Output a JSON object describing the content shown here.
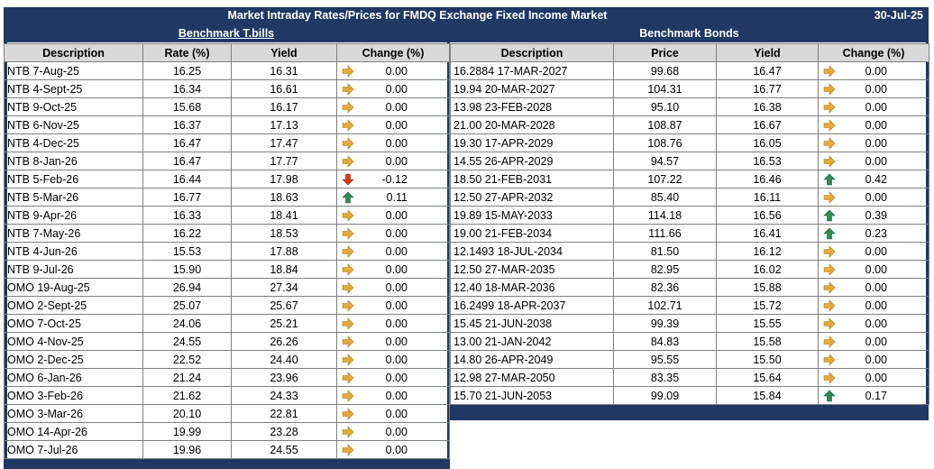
{
  "title": "Market Intraday Rates/Prices for FMDQ Exchange Fixed Income Market",
  "date": "30-Jul-25",
  "colors": {
    "navy": "#1f3864",
    "up": "#2e8b57",
    "down": "#d83b1a",
    "flat": "#e3a93a"
  },
  "tbills": {
    "heading": "Benchmark T.bills",
    "columns": [
      "Description",
      "Rate (%)",
      "Yield",
      "Change (%)"
    ],
    "rows": [
      {
        "desc": "NTB 7-Aug-25",
        "rate": "16.25",
        "yield": "16.31",
        "dir": "flat",
        "change": "0.00"
      },
      {
        "desc": "NTB 4-Sept-25",
        "rate": "16.34",
        "yield": "16.61",
        "dir": "flat",
        "change": "0.00"
      },
      {
        "desc": "NTB 9-Oct-25",
        "rate": "15.68",
        "yield": "16.17",
        "dir": "flat",
        "change": "0.00"
      },
      {
        "desc": "NTB 6-Nov-25",
        "rate": "16.37",
        "yield": "17.13",
        "dir": "flat",
        "change": "0.00"
      },
      {
        "desc": "NTB 4-Dec-25",
        "rate": "16.47",
        "yield": "17.47",
        "dir": "flat",
        "change": "0.00"
      },
      {
        "desc": "NTB 8-Jan-26",
        "rate": "16.47",
        "yield": "17.77",
        "dir": "flat",
        "change": "0.00"
      },
      {
        "desc": "NTB 5-Feb-26",
        "rate": "16.44",
        "yield": "17.98",
        "dir": "down",
        "change": "-0.12"
      },
      {
        "desc": "NTB 5-Mar-26",
        "rate": "16.77",
        "yield": "18.63",
        "dir": "up",
        "change": "0.11"
      },
      {
        "desc": "NTB 9-Apr-26",
        "rate": "16.33",
        "yield": "18.41",
        "dir": "flat",
        "change": "0.00"
      },
      {
        "desc": "NTB 7-May-26",
        "rate": "16.22",
        "yield": "18.53",
        "dir": "flat",
        "change": "0.00"
      },
      {
        "desc": "NTB 4-Jun-26",
        "rate": "15.53",
        "yield": "17.88",
        "dir": "flat",
        "change": "0.00"
      },
      {
        "desc": "NTB 9-Jul-26",
        "rate": "15.90",
        "yield": "18.84",
        "dir": "flat",
        "change": "0.00"
      },
      {
        "desc": "OMO 19-Aug-25",
        "rate": "26.94",
        "yield": "27.34",
        "dir": "flat",
        "change": "0.00"
      },
      {
        "desc": "OMO 2-Sept-25",
        "rate": "25.07",
        "yield": "25.67",
        "dir": "flat",
        "change": "0.00"
      },
      {
        "desc": "OMO 7-Oct-25",
        "rate": "24.06",
        "yield": "25.21",
        "dir": "flat",
        "change": "0.00"
      },
      {
        "desc": "OMO 4-Nov-25",
        "rate": "24.55",
        "yield": "26.26",
        "dir": "flat",
        "change": "0.00"
      },
      {
        "desc": "OMO 2-Dec-25",
        "rate": "22.52",
        "yield": "24.40",
        "dir": "flat",
        "change": "0.00"
      },
      {
        "desc": "OMO 6-Jan-26",
        "rate": "21.24",
        "yield": "23.96",
        "dir": "flat",
        "change": "0.00"
      },
      {
        "desc": "OMO 3-Feb-26",
        "rate": "21.62",
        "yield": "24.33",
        "dir": "flat",
        "change": "0.00"
      },
      {
        "desc": "OMO 3-Mar-26",
        "rate": "20.10",
        "yield": "22.81",
        "dir": "flat",
        "change": "0.00"
      },
      {
        "desc": "OMO 14-Apr-26",
        "rate": "19.99",
        "yield": "23.28",
        "dir": "flat",
        "change": "0.00"
      },
      {
        "desc": "OMO 7-Jul-26",
        "rate": "19.96",
        "yield": "24.55",
        "dir": "flat",
        "change": "0.00"
      }
    ]
  },
  "bonds": {
    "heading": "Benchmark Bonds",
    "columns": [
      "Description",
      "Price",
      "Yield",
      "Change (%)"
    ],
    "rows": [
      {
        "desc": "16.2884 17-MAR-2027",
        "price": "99.68",
        "yield": "16.47",
        "dir": "flat",
        "change": "0.00"
      },
      {
        "desc": "19.94 20-MAR-2027",
        "price": "104.31",
        "yield": "16.77",
        "dir": "flat",
        "change": "0.00"
      },
      {
        "desc": "13.98 23-FEB-2028",
        "price": "95.10",
        "yield": "16.38",
        "dir": "flat",
        "change": "0.00"
      },
      {
        "desc": "21.00 20-MAR-2028",
        "price": "108.87",
        "yield": "16.67",
        "dir": "flat",
        "change": "0.00"
      },
      {
        "desc": "19.30 17-APR-2029",
        "price": "108.76",
        "yield": "16.05",
        "dir": "flat",
        "change": "0.00"
      },
      {
        "desc": "14.55 26-APR-2029",
        "price": "94.57",
        "yield": "16.53",
        "dir": "flat",
        "change": "0.00"
      },
      {
        "desc": "18.50 21-FEB-2031",
        "price": "107.22",
        "yield": "16.46",
        "dir": "up",
        "change": "0.42"
      },
      {
        "desc": "12.50 27-APR-2032",
        "price": "85.40",
        "yield": "16.11",
        "dir": "flat",
        "change": "0.00"
      },
      {
        "desc": "19.89 15-MAY-2033",
        "price": "114.18",
        "yield": "16.56",
        "dir": "up",
        "change": "0.39"
      },
      {
        "desc": "19.00 21-FEB-2034",
        "price": "111.66",
        "yield": "16.41",
        "dir": "up",
        "change": "0.23"
      },
      {
        "desc": "12.1493 18-JUL-2034",
        "price": "81.50",
        "yield": "16.12",
        "dir": "flat",
        "change": "0.00"
      },
      {
        "desc": "12.50 27-MAR-2035",
        "price": "82.95",
        "yield": "16.02",
        "dir": "flat",
        "change": "0.00"
      },
      {
        "desc": "12.40 18-MAR-2036",
        "price": "82.36",
        "yield": "15.88",
        "dir": "flat",
        "change": "0.00"
      },
      {
        "desc": "16.2499 18-APR-2037",
        "price": "102.71",
        "yield": "15.72",
        "dir": "flat",
        "change": "0.00"
      },
      {
        "desc": "15.45 21-JUN-2038",
        "price": "99.39",
        "yield": "15.55",
        "dir": "flat",
        "change": "0.00"
      },
      {
        "desc": "13.00 21-JAN-2042",
        "price": "84.83",
        "yield": "15.58",
        "dir": "flat",
        "change": "0.00"
      },
      {
        "desc": "14.80 26-APR-2049",
        "price": "95.55",
        "yield": "15.50",
        "dir": "flat",
        "change": "0.00"
      },
      {
        "desc": "12.98 27-MAR-2050",
        "price": "83.35",
        "yield": "15.64",
        "dir": "flat",
        "change": "0.00"
      },
      {
        "desc": "15.70 21-JUN-2053",
        "price": "99.09",
        "yield": "15.84",
        "dir": "up",
        "change": "0.17"
      }
    ]
  }
}
